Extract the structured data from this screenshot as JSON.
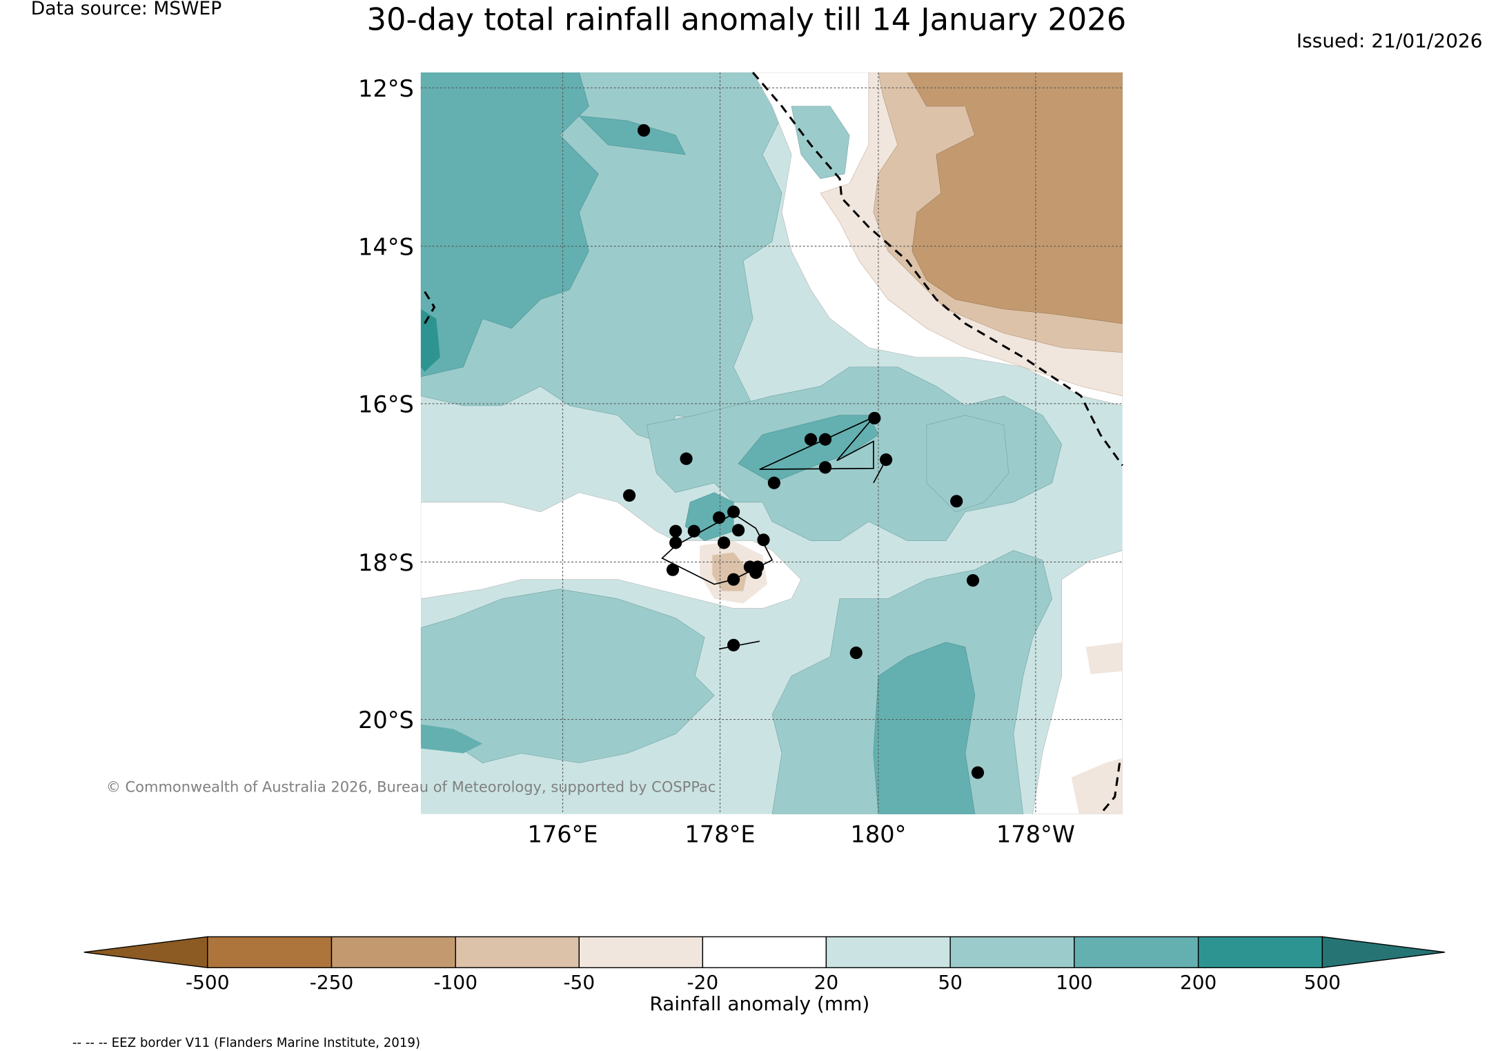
{
  "header": {
    "data_source": "Data source: MSWEP",
    "title": "30-day total rainfall anomaly till 14 January 2026",
    "issued": "Issued: 21/01/2026"
  },
  "map": {
    "lat_labels": [
      "12°S",
      "14°S",
      "16°S",
      "18°S",
      "20°S"
    ],
    "lon_labels": [
      "176°E",
      "178°E",
      "180°",
      "178°W"
    ],
    "copyright": "© Commonwealth of Australia 2026, Bureau of Meteorology, supported by COSPPac",
    "stations_count": 27
  },
  "colorbar": {
    "label": "Rainfall anomaly (mm)",
    "ticks": [
      "-500",
      "-250",
      "-100",
      "-50",
      "-20",
      "20",
      "50",
      "100",
      "200",
      "500"
    ],
    "colors": {
      "below_min": "#8c5a23",
      "m500_m250": "#ad743b",
      "m250_m100": "#c39a6f",
      "m100_m50": "#dbc2a9",
      "m50_m20": "#f0e6dd",
      "m20_20": "#ffffff",
      "20_50": "#cbe4e3",
      "50_100": "#9ccbcb",
      "100_200": "#64b0b1",
      "200_500": "#2e9491",
      "above_max": "#267574"
    }
  },
  "footer": {
    "eez_note": "-- -- -- EEZ border V11 (Flanders Marine Institute, 2019)"
  }
}
